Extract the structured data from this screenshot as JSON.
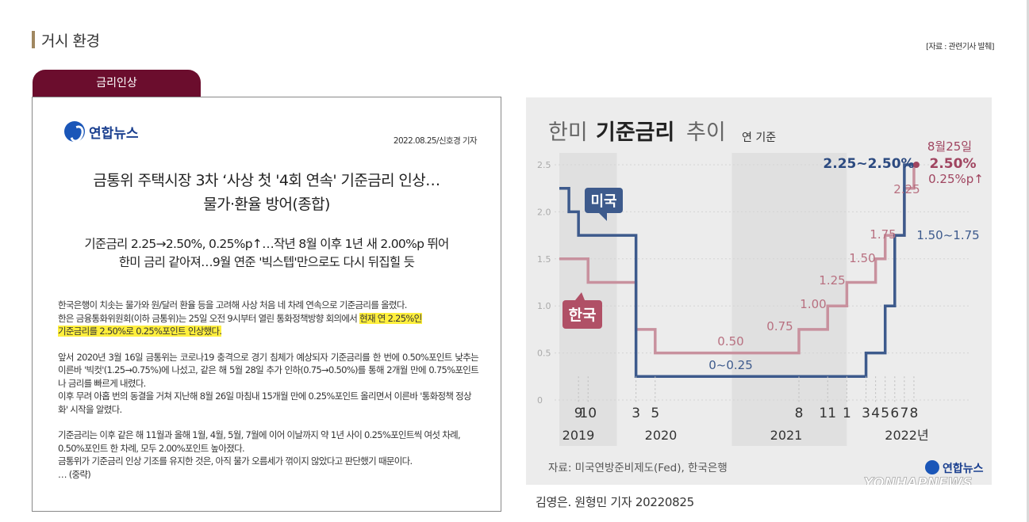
{
  "section": {
    "title": "거시 환경",
    "source_ref": "[자료 : 관련기사 발췌]"
  },
  "tab": {
    "label": "금리인상"
  },
  "article": {
    "logo_text": "연합뉴스",
    "date_line": "2022.08.25/신호경 기자",
    "headline": [
      "금통위 주택시장 3차 ‘사상 첫 '4회 연속' 기준금리 인상…",
      "물가·환율 방어(종합)"
    ],
    "subhead": [
      "기준금리 2.25→2.50%, 0.25%p↑…작년 8월 이후 1년 새 2.00%p 뛰어",
      "한미 금리 같아져…9월 연준 '빅스텝'만으로도 다시 뒤집힐 듯"
    ],
    "p1_line1": "한국은행이 치솟는 물가와 원/달러 환율 등을 고려해 사상 처음 네 차례 연속으로 기준금리를 올렸다.",
    "p1_line2": "한은 금융통화위원회(이하 금통위)는 25일 오전 9시부터 열린 통화정책방향 회의에서 ",
    "p1_highlight_a": "현재 연 2.25%인",
    "p1_highlight_b": "기준금리를 2.50%로 0.25%포인트 인상했다.",
    "p2": "앞서 2020년 3월 16일 금통위는 코로나19 충격으로 경기 침체가 예상되자 기준금리를 한 번에 0.50%포인트 낮추는 이른바 '빅컷'(1.25→0.75%)에 나섰고, 같은 해 5월 28일 추가 인하(0.75→0.50%)를 통해 2개월 만에 0.75%포인트나 금리를 빠르게 내렸다.",
    "p3": "이후 무려 아홉 번의 동결을 거쳐 지난해 8월 26일 마침내 15개월 만에 0.25%포인트 올리면서 이른바 '통화정책 정상화' 시작을 알렸다.",
    "p4_line1": "기준금리는 이후 같은 해 11월과 올해 1월, 4월, 5월, 7월에 이어 이날까지 약 1년 사이 0.25%포인트씩 여섯 차례, 0.50%포인트 한 차례, 모두 2.00%포인트 높아졌다.",
    "p4_line2": "금통위가 기준금리 인상 기조를 유지한 것은, 아직 물가 오름세가 꺾이지 않았다고 판단했기 때문이다.",
    "p4_line3": "… (중략)"
  },
  "chart_data": {
    "type": "line",
    "title_light_a": "한미",
    "title_bold": "기준금리",
    "title_light_b": "추이",
    "title_note": "연 기준",
    "yticks": [
      "2.5",
      "2.0",
      "1.5",
      "1.0",
      "0.5",
      "0"
    ],
    "ylim": [
      0,
      2.5
    ],
    "x_month_labels": [
      "9",
      "10",
      "3",
      "5",
      "8",
      "11",
      "1",
      "3",
      "4",
      "5",
      "6",
      "7",
      "8"
    ],
    "x_year_labels": [
      "2019",
      "2020",
      "2021",
      "2022년"
    ],
    "series": [
      {
        "name": "미국",
        "color": "#3d5a8c",
        "points": [
          [
            "2019-07",
            2.25
          ],
          [
            "2019-08",
            2.0
          ],
          [
            "2019-09",
            1.75
          ],
          [
            "2020-03",
            0.25
          ],
          [
            "2022-03",
            0.5
          ],
          [
            "2022-05",
            1.0
          ],
          [
            "2022-06",
            1.75
          ],
          [
            "2022-07",
            2.5
          ]
        ],
        "labels": [
          "0~0.25",
          "1.50~1.75",
          "2.25~2.50%"
        ]
      },
      {
        "name": "한국",
        "color": "#c8919e",
        "points": [
          [
            "2019-07",
            1.5
          ],
          [
            "2019-10",
            1.25
          ],
          [
            "2020-03",
            0.75
          ],
          [
            "2020-05",
            0.5
          ],
          [
            "2021-08",
            0.75
          ],
          [
            "2021-11",
            1.0
          ],
          [
            "2022-01",
            1.25
          ],
          [
            "2022-04",
            1.5
          ],
          [
            "2022-05",
            1.75
          ],
          [
            "2022-07",
            2.25
          ],
          [
            "2022-08",
            2.5
          ]
        ],
        "labels": [
          "0.50",
          "0.75",
          "1.00",
          "1.25",
          "1.50",
          "1.75",
          "2.25"
        ]
      }
    ],
    "annotation": {
      "date": "8월25일",
      "value": "2.50%",
      "change": "0.25%p↑"
    },
    "source": "자료: 미국연방준비제도(Fed), 한국은행",
    "logo": "연합뉴스",
    "watermark": "YONHAPNEWS",
    "colors": {
      "us": "#3d5a8c",
      "kr": "#c8919e",
      "accent": "#a04560",
      "bg": "#ececec",
      "shade": "#e0e0e0"
    }
  },
  "credit": "김영은. 원형민 기자 20220825"
}
